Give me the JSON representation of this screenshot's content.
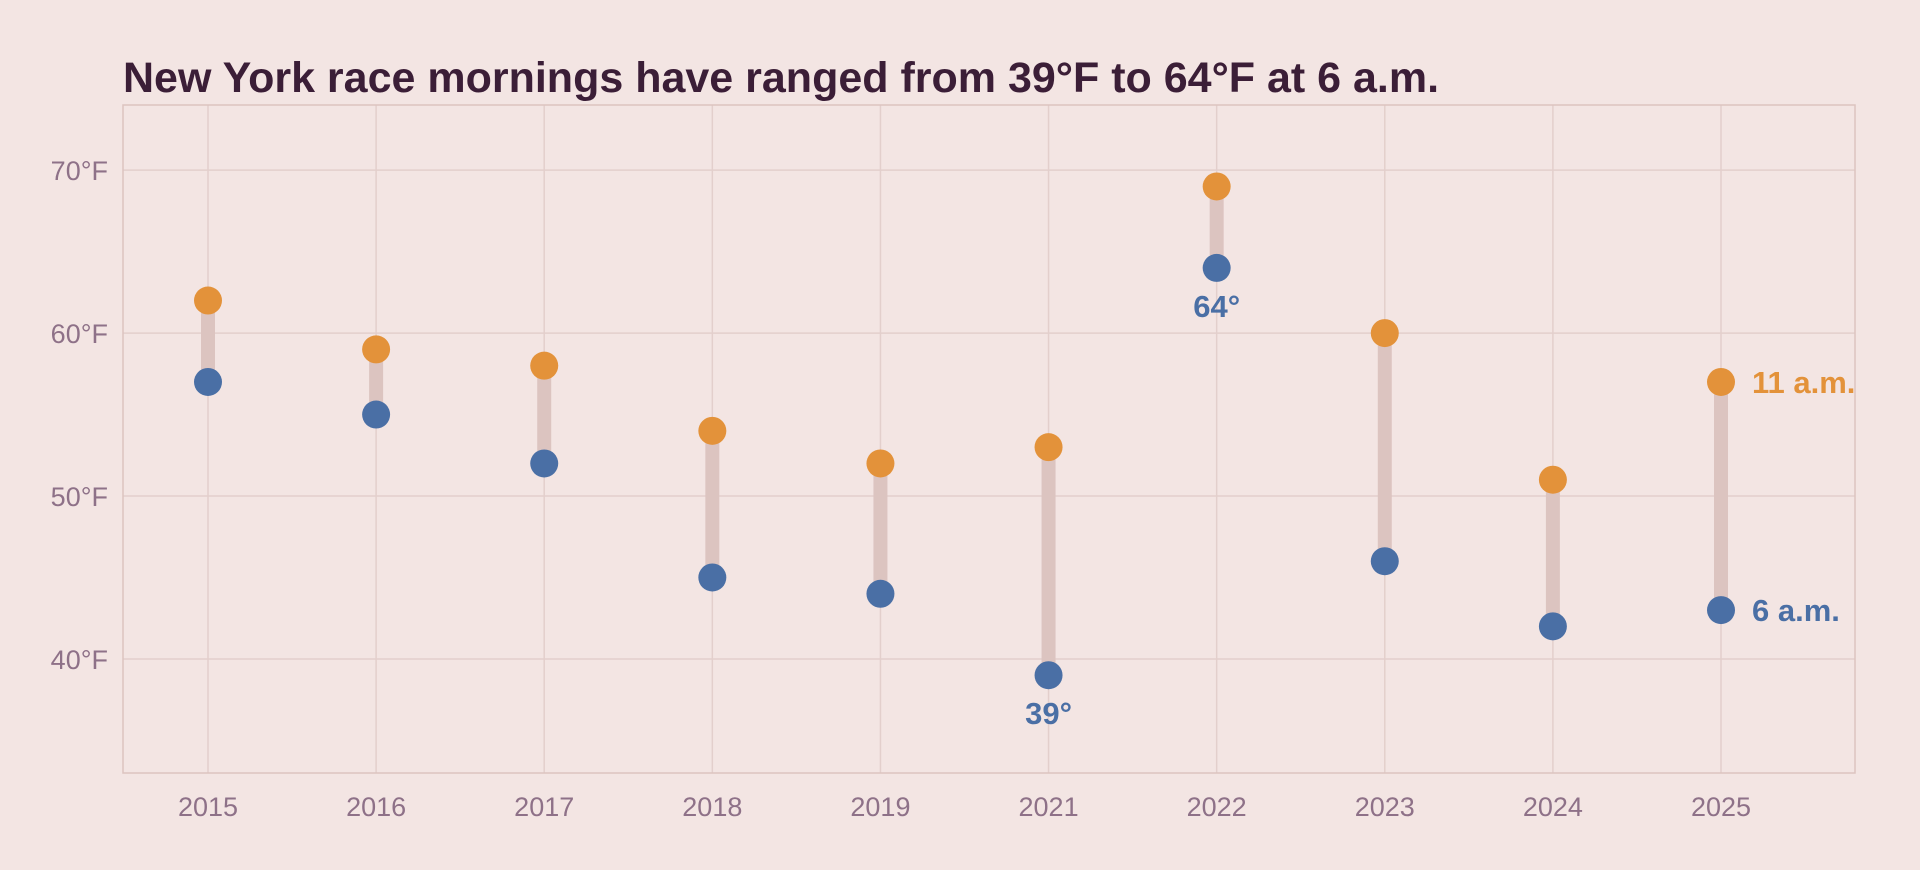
{
  "chart_data": {
    "type": "scatter",
    "title": "New York race mornings have ranged from 39°F to 64°F at 6 a.m.",
    "xlabel": "",
    "ylabel": "",
    "categories": [
      "2015",
      "2016",
      "2017",
      "2018",
      "2019",
      "2021",
      "2022",
      "2023",
      "2024",
      "2025"
    ],
    "series": [
      {
        "name": "6 a.m.",
        "values": [
          57,
          55,
          52,
          45,
          44,
          39,
          64,
          46,
          42,
          43
        ],
        "color": "#4a6fa5"
      },
      {
        "name": "11 a.m.",
        "values": [
          62,
          59,
          58,
          54,
          52,
          53,
          69,
          60,
          51,
          57
        ],
        "color": "#e3923a"
      }
    ],
    "ylim": [
      33,
      74
    ],
    "yticks": [
      40,
      50,
      60,
      70
    ],
    "ytick_labels": [
      "40°F",
      "50°F",
      "60°F",
      "70°F"
    ],
    "grid": true,
    "legend": "right, labels next to last year's points",
    "connector_color": "#dcc4c0",
    "annotations": [
      {
        "category": "2021",
        "series": "6 a.m.",
        "text": "39°"
      },
      {
        "category": "2022",
        "series": "6 a.m.",
        "text": "64°"
      }
    ]
  }
}
